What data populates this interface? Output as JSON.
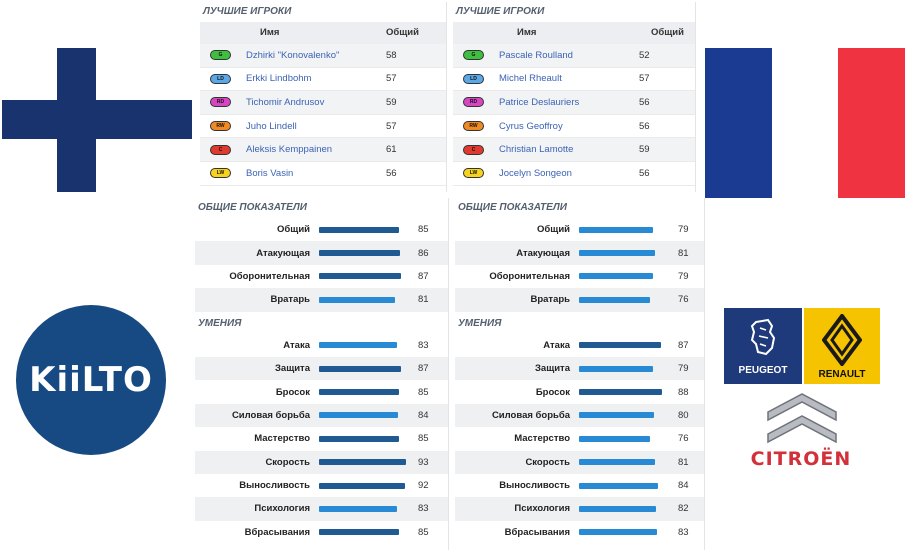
{
  "colors": {
    "finland_blue": "#19336e",
    "france_blue": "#1b3a91",
    "france_white": "#ffffff",
    "france_red": "#ef3340",
    "bar_dark": "#1f5a93",
    "bar_light": "#2889d4",
    "kiilto_blue": "#174a82",
    "pos_G": "#3fbf3f",
    "pos_LD": "#5aa8e8",
    "pos_RD": "#d646c2",
    "pos_RW": "#f08a24",
    "pos_C": "#e03a2e",
    "pos_LW": "#f6d31e"
  },
  "logos": {
    "kiilto": "KiiLTO",
    "peugeot": "PEUGEOT",
    "renault": "RENAULT",
    "citroen": "CITROËN"
  },
  "left": {
    "best_players_title": "ЛУЧШИЕ ИГРОКИ",
    "col_name": "Имя",
    "col_overall": "Общий",
    "players": [
      {
        "pos": "G",
        "name": "Dzhirki \"Konovalenko\"",
        "overall": "58"
      },
      {
        "pos": "LD",
        "name": "Erkki Lindbohm",
        "overall": "57"
      },
      {
        "pos": "RD",
        "name": "Tichomir Andrusov",
        "overall": "59"
      },
      {
        "pos": "RW",
        "name": "Juho Lindell",
        "overall": "57"
      },
      {
        "pos": "C",
        "name": "Aleksis Kemppainen",
        "overall": "61"
      },
      {
        "pos": "LW",
        "name": "Boris Vasin",
        "overall": "56"
      }
    ],
    "overall_title": "ОБЩИЕ ПОКАЗАТЕЛИ",
    "overall": [
      {
        "label": "Общий",
        "value": 85,
        "tone": "dark"
      },
      {
        "label": "Атакующая",
        "value": 86,
        "tone": "dark"
      },
      {
        "label": "Оборонительная",
        "value": 87,
        "tone": "dark"
      },
      {
        "label": "Вратарь",
        "value": 81,
        "tone": "light"
      }
    ],
    "skills_title": "УМЕНИЯ",
    "skills": [
      {
        "label": "Атака",
        "value": 83,
        "tone": "light"
      },
      {
        "label": "Защита",
        "value": 87,
        "tone": "dark"
      },
      {
        "label": "Бросок",
        "value": 85,
        "tone": "dark"
      },
      {
        "label": "Силовая борьба",
        "value": 84,
        "tone": "light"
      },
      {
        "label": "Мастерство",
        "value": 85,
        "tone": "dark"
      },
      {
        "label": "Скорость",
        "value": 93,
        "tone": "dark"
      },
      {
        "label": "Выносливость",
        "value": 92,
        "tone": "dark"
      },
      {
        "label": "Психология",
        "value": 83,
        "tone": "light"
      },
      {
        "label": "Вбрасывания",
        "value": 85,
        "tone": "dark"
      }
    ]
  },
  "right": {
    "best_players_title": "ЛУЧШИЕ ИГРОКИ",
    "col_name": "Имя",
    "col_overall": "Общий",
    "players": [
      {
        "pos": "G",
        "name": "Pascale Roulland",
        "overall": "52"
      },
      {
        "pos": "LD",
        "name": "Michel Rheault",
        "overall": "57"
      },
      {
        "pos": "RD",
        "name": "Patrice Deslauriers",
        "overall": "56"
      },
      {
        "pos": "RW",
        "name": "Cyrus Geoffroy",
        "overall": "56"
      },
      {
        "pos": "C",
        "name": "Christian Lamotte",
        "overall": "59"
      },
      {
        "pos": "LW",
        "name": "Jocelyn Songeon",
        "overall": "56"
      }
    ],
    "overall_title": "ОБЩИЕ ПОКАЗАТЕЛИ",
    "overall": [
      {
        "label": "Общий",
        "value": 79,
        "tone": "light"
      },
      {
        "label": "Атакующая",
        "value": 81,
        "tone": "light"
      },
      {
        "label": "Оборонительная",
        "value": 79,
        "tone": "light"
      },
      {
        "label": "Вратарь",
        "value": 76,
        "tone": "light"
      }
    ],
    "skills_title": "УМЕНИЯ",
    "skills": [
      {
        "label": "Атака",
        "value": 87,
        "tone": "dark"
      },
      {
        "label": "Защита",
        "value": 79,
        "tone": "light"
      },
      {
        "label": "Бросок",
        "value": 88,
        "tone": "dark"
      },
      {
        "label": "Силовая борьба",
        "value": 80,
        "tone": "light"
      },
      {
        "label": "Мастерство",
        "value": 76,
        "tone": "light"
      },
      {
        "label": "Скорость",
        "value": 81,
        "tone": "light"
      },
      {
        "label": "Выносливость",
        "value": 84,
        "tone": "light"
      },
      {
        "label": "Психология",
        "value": 82,
        "tone": "light"
      },
      {
        "label": "Вбрасывания",
        "value": 83,
        "tone": "light"
      }
    ]
  }
}
